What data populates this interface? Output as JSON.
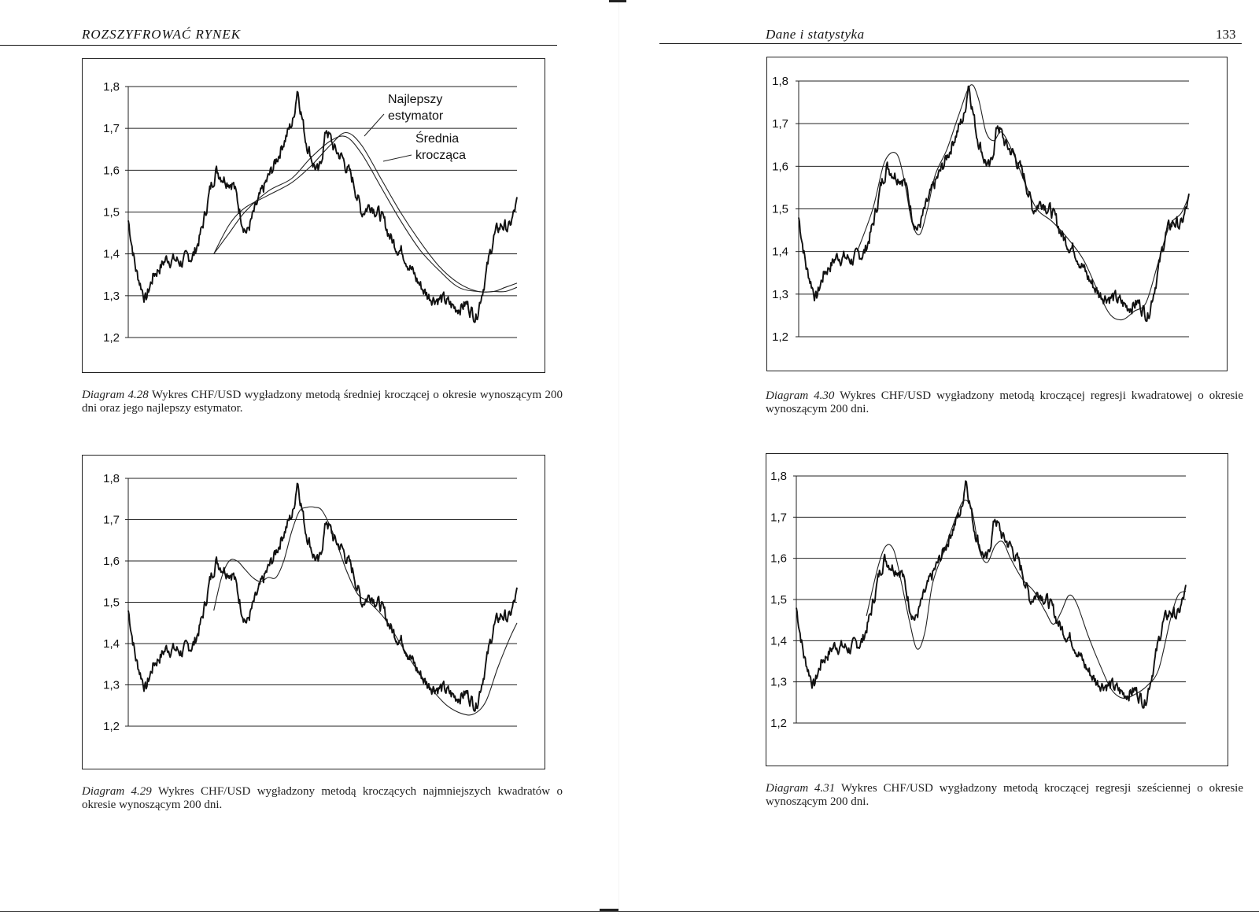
{
  "left_page": {
    "header": "ROZSZYFROWAĆ RYNEK"
  },
  "right_page": {
    "header": "Dane i statystyka",
    "page_number": "133"
  },
  "captions": [
    {
      "label": "Diagram 4.28",
      "text": "Wykres CHF/USD wygładzony metodą średniej kroczącej o okresie wynoszącym 200 dni oraz jego najlepszy estymator."
    },
    {
      "label": "Diagram 4.29",
      "text": "Wykres CHF/USD wygładzony metodą kroczących najmniejszych kwadratów o okresie wynoszącym 200 dni."
    },
    {
      "label": "Diagram 4.30",
      "text": "Wykres CHF/USD wygładzony metodą kroczącej regresji kwadratowej o okresie wynoszącym 200 dni."
    },
    {
      "label": "Diagram 4.31",
      "text": "Wykres CHF/USD wygładzony metodą kroczącej regresji sześciennej o okresie wynoszącym 200 dni."
    }
  ],
  "chart_data": [
    {
      "id": "diagram-4-28",
      "type": "line",
      "ylim": [
        1.2,
        1.8
      ],
      "yticks": [
        "1,8",
        "1,7",
        "1,6",
        "1,5",
        "1,4",
        "1,3",
        "1,2"
      ],
      "grid": true,
      "annotations": [
        {
          "lines": [
            "Najlepszy",
            "estymator"
          ]
        },
        {
          "lines": [
            "Średnia",
            "krocząca"
          ]
        }
      ],
      "price_anchors": [
        [
          0,
          1.48
        ],
        [
          0.02,
          1.36
        ],
        [
          0.045,
          1.29
        ],
        [
          0.065,
          1.35
        ],
        [
          0.1,
          1.39
        ],
        [
          0.14,
          1.38
        ],
        [
          0.17,
          1.4
        ],
        [
          0.19,
          1.46
        ],
        [
          0.21,
          1.55
        ],
        [
          0.225,
          1.6
        ],
        [
          0.25,
          1.58
        ],
        [
          0.27,
          1.57
        ],
        [
          0.29,
          1.49
        ],
        [
          0.305,
          1.45
        ],
        [
          0.325,
          1.5
        ],
        [
          0.35,
          1.56
        ],
        [
          0.375,
          1.61
        ],
        [
          0.4,
          1.67
        ],
        [
          0.425,
          1.72
        ],
        [
          0.435,
          1.8
        ],
        [
          0.455,
          1.68
        ],
        [
          0.475,
          1.62
        ],
        [
          0.49,
          1.59
        ],
        [
          0.51,
          1.7
        ],
        [
          0.53,
          1.65
        ],
        [
          0.55,
          1.63
        ],
        [
          0.58,
          1.57
        ],
        [
          0.6,
          1.5
        ],
        [
          0.625,
          1.52
        ],
        [
          0.65,
          1.49
        ],
        [
          0.68,
          1.43
        ],
        [
          0.71,
          1.4
        ],
        [
          0.74,
          1.34
        ],
        [
          0.77,
          1.3
        ],
        [
          0.81,
          1.29
        ],
        [
          0.84,
          1.27
        ],
        [
          0.87,
          1.28
        ],
        [
          0.895,
          1.25
        ],
        [
          0.92,
          1.35
        ],
        [
          0.94,
          1.44
        ],
        [
          0.96,
          1.47
        ],
        [
          0.98,
          1.46
        ],
        [
          1.0,
          1.52
        ]
      ],
      "smooth_series": [
        {
          "x": [
            0.22,
            0.26,
            0.3,
            0.36,
            0.42,
            0.47,
            0.52,
            0.56,
            0.6,
            0.65,
            0.7,
            0.75,
            0.8,
            0.85,
            0.9,
            0.94,
            0.97,
            1.0
          ],
          "y": [
            1.4,
            1.45,
            1.5,
            1.55,
            1.58,
            1.63,
            1.67,
            1.68,
            1.64,
            1.56,
            1.48,
            1.41,
            1.36,
            1.32,
            1.31,
            1.31,
            1.32,
            1.33
          ]
        },
        {
          "x": [
            0.22,
            0.26,
            0.3,
            0.36,
            0.42,
            0.47,
            0.52,
            0.56,
            0.6,
            0.65,
            0.7,
            0.75,
            0.8,
            0.85,
            0.9,
            0.94,
            0.97,
            1.0
          ],
          "y": [
            1.4,
            1.47,
            1.51,
            1.54,
            1.57,
            1.61,
            1.66,
            1.69,
            1.66,
            1.58,
            1.5,
            1.43,
            1.37,
            1.33,
            1.31,
            1.31,
            1.31,
            1.32
          ]
        }
      ]
    },
    {
      "id": "diagram-4-29",
      "type": "line",
      "ylim": [
        1.2,
        1.8
      ],
      "yticks": [
        "1,8",
        "1,7",
        "1,6",
        "1,5",
        "1,4",
        "1,3",
        "1,2"
      ],
      "grid": true,
      "price_anchors": [
        [
          0,
          1.48
        ],
        [
          0.02,
          1.36
        ],
        [
          0.045,
          1.29
        ],
        [
          0.065,
          1.35
        ],
        [
          0.1,
          1.39
        ],
        [
          0.14,
          1.38
        ],
        [
          0.17,
          1.4
        ],
        [
          0.19,
          1.46
        ],
        [
          0.21,
          1.55
        ],
        [
          0.225,
          1.6
        ],
        [
          0.25,
          1.58
        ],
        [
          0.27,
          1.57
        ],
        [
          0.29,
          1.49
        ],
        [
          0.305,
          1.45
        ],
        [
          0.325,
          1.5
        ],
        [
          0.35,
          1.56
        ],
        [
          0.375,
          1.61
        ],
        [
          0.4,
          1.67
        ],
        [
          0.425,
          1.72
        ],
        [
          0.435,
          1.8
        ],
        [
          0.455,
          1.68
        ],
        [
          0.475,
          1.62
        ],
        [
          0.49,
          1.59
        ],
        [
          0.51,
          1.7
        ],
        [
          0.53,
          1.65
        ],
        [
          0.55,
          1.63
        ],
        [
          0.58,
          1.57
        ],
        [
          0.6,
          1.5
        ],
        [
          0.625,
          1.52
        ],
        [
          0.65,
          1.49
        ],
        [
          0.68,
          1.43
        ],
        [
          0.71,
          1.4
        ],
        [
          0.74,
          1.34
        ],
        [
          0.77,
          1.3
        ],
        [
          0.81,
          1.29
        ],
        [
          0.84,
          1.27
        ],
        [
          0.87,
          1.28
        ],
        [
          0.895,
          1.25
        ],
        [
          0.92,
          1.35
        ],
        [
          0.94,
          1.44
        ],
        [
          0.96,
          1.47
        ],
        [
          0.98,
          1.46
        ],
        [
          1.0,
          1.52
        ]
      ],
      "smooth_series": [
        {
          "x": [
            0.22,
            0.24,
            0.26,
            0.28,
            0.3,
            0.32,
            0.34,
            0.36,
            0.38,
            0.4,
            0.42,
            0.44,
            0.46,
            0.48,
            0.5,
            0.53,
            0.56,
            0.59,
            0.62,
            0.66,
            0.7,
            0.74,
            0.78,
            0.82,
            0.86,
            0.89,
            0.92,
            0.95,
            0.98,
            1.0
          ],
          "y": [
            1.48,
            1.56,
            1.6,
            1.6,
            1.58,
            1.56,
            1.55,
            1.56,
            1.56,
            1.6,
            1.67,
            1.72,
            1.73,
            1.73,
            1.72,
            1.66,
            1.58,
            1.52,
            1.5,
            1.46,
            1.4,
            1.34,
            1.29,
            1.25,
            1.23,
            1.23,
            1.26,
            1.34,
            1.41,
            1.45
          ]
        }
      ]
    },
    {
      "id": "diagram-4-30",
      "type": "line",
      "ylim": [
        1.2,
        1.8
      ],
      "yticks": [
        "1,8",
        "1,7",
        "1,6",
        "1,5",
        "1,4",
        "1,3",
        "1,2"
      ],
      "grid": true,
      "price_anchors": [
        [
          0,
          1.48
        ],
        [
          0.02,
          1.36
        ],
        [
          0.045,
          1.29
        ],
        [
          0.065,
          1.35
        ],
        [
          0.1,
          1.39
        ],
        [
          0.14,
          1.38
        ],
        [
          0.17,
          1.4
        ],
        [
          0.19,
          1.46
        ],
        [
          0.21,
          1.55
        ],
        [
          0.225,
          1.6
        ],
        [
          0.25,
          1.58
        ],
        [
          0.27,
          1.57
        ],
        [
          0.29,
          1.49
        ],
        [
          0.305,
          1.45
        ],
        [
          0.325,
          1.5
        ],
        [
          0.35,
          1.56
        ],
        [
          0.375,
          1.61
        ],
        [
          0.4,
          1.67
        ],
        [
          0.425,
          1.72
        ],
        [
          0.435,
          1.8
        ],
        [
          0.455,
          1.68
        ],
        [
          0.475,
          1.62
        ],
        [
          0.49,
          1.59
        ],
        [
          0.51,
          1.7
        ],
        [
          0.53,
          1.65
        ],
        [
          0.55,
          1.63
        ],
        [
          0.58,
          1.57
        ],
        [
          0.6,
          1.5
        ],
        [
          0.625,
          1.52
        ],
        [
          0.65,
          1.49
        ],
        [
          0.68,
          1.43
        ],
        [
          0.71,
          1.4
        ],
        [
          0.74,
          1.34
        ],
        [
          0.77,
          1.3
        ],
        [
          0.81,
          1.29
        ],
        [
          0.84,
          1.27
        ],
        [
          0.87,
          1.28
        ],
        [
          0.895,
          1.25
        ],
        [
          0.92,
          1.35
        ],
        [
          0.94,
          1.44
        ],
        [
          0.96,
          1.47
        ],
        [
          0.98,
          1.46
        ],
        [
          1.0,
          1.52
        ]
      ],
      "smooth_series": [
        {
          "x": [
            0.15,
            0.19,
            0.22,
            0.25,
            0.27,
            0.29,
            0.31,
            0.33,
            0.35,
            0.38,
            0.41,
            0.44,
            0.46,
            0.48,
            0.5,
            0.52,
            0.55,
            0.58,
            0.61,
            0.65,
            0.69,
            0.73,
            0.77,
            0.8,
            0.83,
            0.86,
            0.89,
            0.92,
            0.95,
            0.98,
            1.0
          ],
          "y": [
            1.4,
            1.5,
            1.61,
            1.63,
            1.57,
            1.47,
            1.44,
            1.5,
            1.58,
            1.64,
            1.72,
            1.79,
            1.76,
            1.68,
            1.66,
            1.68,
            1.63,
            1.56,
            1.5,
            1.47,
            1.43,
            1.38,
            1.3,
            1.25,
            1.24,
            1.26,
            1.28,
            1.37,
            1.46,
            1.49,
            1.53
          ]
        }
      ]
    },
    {
      "id": "diagram-4-31",
      "type": "line",
      "ylim": [
        1.2,
        1.8
      ],
      "yticks": [
        "1,8",
        "1,7",
        "1,6",
        "1,5",
        "1,4",
        "1,3",
        "1,2"
      ],
      "grid": true,
      "price_anchors": [
        [
          0,
          1.48
        ],
        [
          0.02,
          1.36
        ],
        [
          0.045,
          1.29
        ],
        [
          0.065,
          1.35
        ],
        [
          0.1,
          1.39
        ],
        [
          0.14,
          1.38
        ],
        [
          0.17,
          1.4
        ],
        [
          0.19,
          1.46
        ],
        [
          0.21,
          1.55
        ],
        [
          0.225,
          1.6
        ],
        [
          0.25,
          1.58
        ],
        [
          0.27,
          1.57
        ],
        [
          0.29,
          1.49
        ],
        [
          0.305,
          1.45
        ],
        [
          0.325,
          1.5
        ],
        [
          0.35,
          1.56
        ],
        [
          0.375,
          1.61
        ],
        [
          0.4,
          1.67
        ],
        [
          0.425,
          1.72
        ],
        [
          0.435,
          1.8
        ],
        [
          0.455,
          1.68
        ],
        [
          0.475,
          1.62
        ],
        [
          0.49,
          1.59
        ],
        [
          0.51,
          1.7
        ],
        [
          0.53,
          1.65
        ],
        [
          0.55,
          1.63
        ],
        [
          0.58,
          1.57
        ],
        [
          0.6,
          1.5
        ],
        [
          0.625,
          1.52
        ],
        [
          0.65,
          1.49
        ],
        [
          0.68,
          1.43
        ],
        [
          0.71,
          1.4
        ],
        [
          0.74,
          1.34
        ],
        [
          0.77,
          1.3
        ],
        [
          0.81,
          1.29
        ],
        [
          0.84,
          1.27
        ],
        [
          0.87,
          1.28
        ],
        [
          0.895,
          1.25
        ],
        [
          0.92,
          1.35
        ],
        [
          0.94,
          1.44
        ],
        [
          0.96,
          1.47
        ],
        [
          0.98,
          1.46
        ],
        [
          1.0,
          1.52
        ]
      ],
      "smooth_series": [
        {
          "x": [
            0.18,
            0.21,
            0.23,
            0.25,
            0.27,
            0.29,
            0.31,
            0.33,
            0.35,
            0.38,
            0.41,
            0.43,
            0.45,
            0.47,
            0.49,
            0.51,
            0.53,
            0.55,
            0.58,
            0.61,
            0.64,
            0.66,
            0.68,
            0.7,
            0.72,
            0.75,
            0.78,
            0.81,
            0.84,
            0.87,
            0.9,
            0.93,
            0.96,
            0.98,
            1.0
          ],
          "y": [
            1.46,
            1.58,
            1.63,
            1.62,
            1.54,
            1.45,
            1.38,
            1.42,
            1.54,
            1.62,
            1.7,
            1.74,
            1.72,
            1.62,
            1.59,
            1.63,
            1.64,
            1.6,
            1.55,
            1.52,
            1.47,
            1.44,
            1.47,
            1.51,
            1.49,
            1.41,
            1.34,
            1.28,
            1.26,
            1.27,
            1.29,
            1.33,
            1.45,
            1.51,
            1.52
          ]
        }
      ]
    }
  ]
}
